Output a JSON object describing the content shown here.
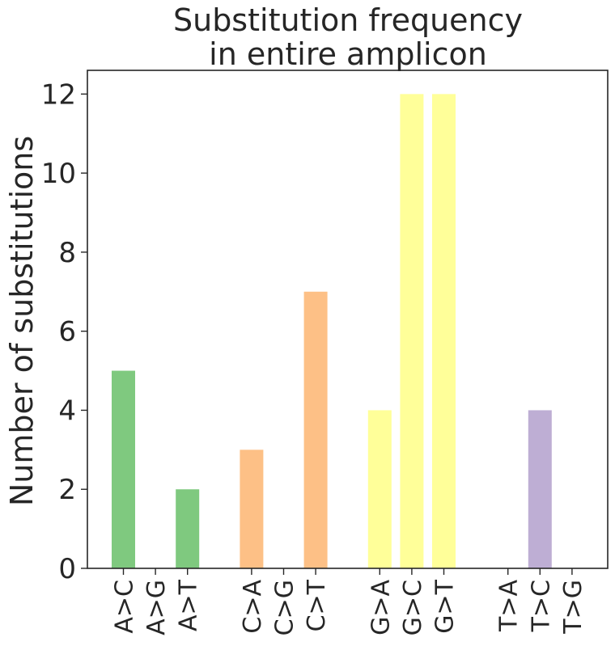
{
  "chart_data": {
    "type": "bar",
    "title_lines": [
      "Substitution frequency",
      "in entire amplicon"
    ],
    "xlabel": "",
    "ylabel": "Number of substitutions",
    "ylim": [
      0,
      12.6
    ],
    "yticks": [
      0,
      2,
      4,
      6,
      8,
      10,
      12
    ],
    "grid": false,
    "groups": [
      {
        "base": "A",
        "color": "#7fc97f",
        "bars": [
          {
            "label": "A>C",
            "value": 5
          },
          {
            "label": "A>G",
            "value": 0
          },
          {
            "label": "A>T",
            "value": 2
          }
        ]
      },
      {
        "base": "C",
        "color": "#fdc086",
        "bars": [
          {
            "label": "C>A",
            "value": 3
          },
          {
            "label": "C>G",
            "value": 0
          },
          {
            "label": "C>T",
            "value": 7
          }
        ]
      },
      {
        "base": "G",
        "color": "#ffff99",
        "bars": [
          {
            "label": "G>A",
            "value": 4
          },
          {
            "label": "G>C",
            "value": 12
          },
          {
            "label": "G>T",
            "value": 12
          }
        ]
      },
      {
        "base": "T",
        "color": "#beaed4",
        "bars": [
          {
            "label": "T>A",
            "value": 0
          },
          {
            "label": "T>C",
            "value": 4
          },
          {
            "label": "T>G",
            "value": 0
          }
        ]
      }
    ]
  }
}
